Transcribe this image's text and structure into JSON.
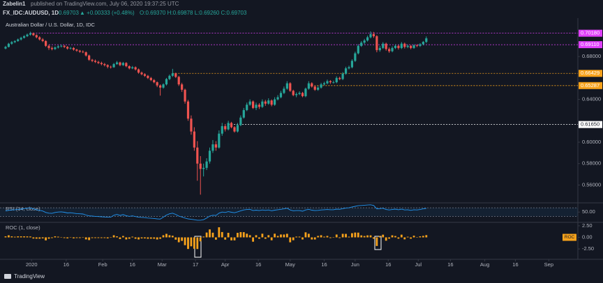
{
  "header": {
    "author": "Zabelin1",
    "published": "published on TradingView.com, July 06, 2020 19:37:25 UTC",
    "symbol": "FX_IDC:AUDUSD, 1D",
    "price": "0.69703",
    "change": "▲ +0.00333 (+0.48%)",
    "ohlc": "O:0.69370 H:0.69878 L:0.69260 C:0.69703"
  },
  "footer": "TradingView",
  "chart_data": {
    "type": "candlestick",
    "title": "Australian Dollar / U.S. Dollar, 1D, IDC",
    "up_color": "#26a69a",
    "down_color": "#ef5350",
    "ohlc": [
      [
        0.6875,
        0.69,
        0.6868,
        0.689
      ],
      [
        0.689,
        0.6928,
        0.6885,
        0.692
      ],
      [
        0.692,
        0.6945,
        0.691,
        0.6935
      ],
      [
        0.6935,
        0.6952,
        0.6925,
        0.6945
      ],
      [
        0.6945,
        0.6968,
        0.6938,
        0.696
      ],
      [
        0.696,
        0.6985,
        0.695,
        0.6975
      ],
      [
        0.6975,
        0.7,
        0.6968,
        0.699
      ],
      [
        0.699,
        0.7015,
        0.6982,
        0.7005
      ],
      [
        0.7005,
        0.7032,
        0.6995,
        0.7018
      ],
      [
        0.7018,
        0.7025,
        0.6992,
        0.7
      ],
      [
        0.7,
        0.7008,
        0.697,
        0.698
      ],
      [
        0.698,
        0.699,
        0.695,
        0.696
      ],
      [
        0.696,
        0.6972,
        0.6935,
        0.6945
      ],
      [
        0.6945,
        0.6952,
        0.689,
        0.69
      ],
      [
        0.69,
        0.6912,
        0.6862,
        0.688
      ],
      [
        0.688,
        0.6895,
        0.6858,
        0.687
      ],
      [
        0.687,
        0.6895,
        0.6862,
        0.6885
      ],
      [
        0.6885,
        0.6905,
        0.6875,
        0.6895
      ],
      [
        0.6895,
        0.6912,
        0.6885,
        0.69
      ],
      [
        0.69,
        0.6908,
        0.688,
        0.689
      ],
      [
        0.689,
        0.6898,
        0.6865,
        0.6875
      ],
      [
        0.6875,
        0.689,
        0.6866,
        0.688
      ],
      [
        0.688,
        0.6888,
        0.6855,
        0.6865
      ],
      [
        0.6865,
        0.6872,
        0.6845,
        0.6855
      ],
      [
        0.6855,
        0.6862,
        0.6835,
        0.6845
      ],
      [
        0.6845,
        0.6858,
        0.6832,
        0.684
      ],
      [
        0.684,
        0.6848,
        0.68,
        0.681
      ],
      [
        0.681,
        0.6818,
        0.676,
        0.677
      ],
      [
        0.677,
        0.6778,
        0.6748,
        0.676
      ],
      [
        0.676,
        0.6772,
        0.674,
        0.675
      ],
      [
        0.675,
        0.676,
        0.673,
        0.674
      ],
      [
        0.674,
        0.6752,
        0.6718,
        0.673
      ],
      [
        0.673,
        0.674,
        0.6708,
        0.672
      ],
      [
        0.672,
        0.6728,
        0.669,
        0.6705
      ],
      [
        0.6705,
        0.6715,
        0.6688,
        0.67
      ],
      [
        0.67,
        0.674,
        0.6695,
        0.673
      ],
      [
        0.673,
        0.6758,
        0.6722,
        0.6745
      ],
      [
        0.6745,
        0.6752,
        0.671,
        0.672
      ],
      [
        0.672,
        0.675,
        0.6712,
        0.674
      ],
      [
        0.674,
        0.6748,
        0.67,
        0.671
      ],
      [
        0.671,
        0.6718,
        0.668,
        0.669
      ],
      [
        0.669,
        0.6712,
        0.6682,
        0.67
      ],
      [
        0.67,
        0.6708,
        0.667,
        0.668
      ],
      [
        0.668,
        0.6688,
        0.664,
        0.665
      ],
      [
        0.665,
        0.666,
        0.6625,
        0.6635
      ],
      [
        0.6635,
        0.6645,
        0.661,
        0.662
      ],
      [
        0.662,
        0.6628,
        0.659,
        0.66
      ],
      [
        0.66,
        0.661,
        0.657,
        0.658
      ],
      [
        0.658,
        0.659,
        0.655,
        0.656
      ],
      [
        0.656,
        0.6568,
        0.6515,
        0.653
      ],
      [
        0.653,
        0.654,
        0.6435,
        0.651
      ],
      [
        0.651,
        0.655,
        0.65,
        0.654
      ],
      [
        0.654,
        0.66,
        0.653,
        0.659
      ],
      [
        0.659,
        0.6632,
        0.658,
        0.662
      ],
      [
        0.662,
        0.6685,
        0.661,
        0.6643
      ],
      [
        0.6643,
        0.665,
        0.66,
        0.661
      ],
      [
        0.661,
        0.662,
        0.6525,
        0.654
      ],
      [
        0.654,
        0.6555,
        0.647,
        0.649
      ],
      [
        0.649,
        0.65,
        0.636,
        0.638
      ],
      [
        0.638,
        0.6395,
        0.62,
        0.622
      ],
      [
        0.622,
        0.625,
        0.607,
        0.61
      ],
      [
        0.61,
        0.614,
        0.592,
        0.595
      ],
      [
        0.595,
        0.601,
        0.564,
        0.58
      ],
      [
        0.58,
        0.587,
        0.551,
        0.575
      ],
      [
        0.575,
        0.58,
        0.568,
        0.576
      ],
      [
        0.576,
        0.585,
        0.574,
        0.582
      ],
      [
        0.582,
        0.595,
        0.58,
        0.592
      ],
      [
        0.592,
        0.602,
        0.59,
        0.598
      ],
      [
        0.598,
        0.601,
        0.592,
        0.595
      ],
      [
        0.595,
        0.611,
        0.594,
        0.608
      ],
      [
        0.608,
        0.618,
        0.606,
        0.615
      ],
      [
        0.615,
        0.617,
        0.61,
        0.612
      ],
      [
        0.612,
        0.62,
        0.611,
        0.618
      ],
      [
        0.618,
        0.619,
        0.613,
        0.614
      ],
      [
        0.614,
        0.615,
        0.609,
        0.61
      ],
      [
        0.61,
        0.618,
        0.609,
        0.616
      ],
      [
        0.616,
        0.625,
        0.615,
        0.623
      ],
      [
        0.623,
        0.632,
        0.622,
        0.63
      ],
      [
        0.63,
        0.637,
        0.629,
        0.635
      ],
      [
        0.635,
        0.64,
        0.634,
        0.638
      ],
      [
        0.638,
        0.639,
        0.631,
        0.632
      ],
      [
        0.632,
        0.637,
        0.63,
        0.635
      ],
      [
        0.635,
        0.6365,
        0.631,
        0.633
      ],
      [
        0.633,
        0.64,
        0.632,
        0.638
      ],
      [
        0.638,
        0.6395,
        0.634,
        0.636
      ],
      [
        0.636,
        0.641,
        0.635,
        0.639
      ],
      [
        0.639,
        0.64,
        0.6335,
        0.635
      ],
      [
        0.635,
        0.642,
        0.634,
        0.64
      ],
      [
        0.64,
        0.644,
        0.639,
        0.642
      ],
      [
        0.642,
        0.648,
        0.641,
        0.646
      ],
      [
        0.646,
        0.652,
        0.645,
        0.65
      ],
      [
        0.65,
        0.657,
        0.649,
        0.655
      ],
      [
        0.655,
        0.656,
        0.647,
        0.648
      ],
      [
        0.648,
        0.649,
        0.643,
        0.644
      ],
      [
        0.644,
        0.6465,
        0.642,
        0.645
      ],
      [
        0.645,
        0.6475,
        0.644,
        0.646
      ],
      [
        0.646,
        0.647,
        0.642,
        0.643
      ],
      [
        0.643,
        0.651,
        0.642,
        0.65
      ],
      [
        0.65,
        0.657,
        0.649,
        0.655
      ],
      [
        0.655,
        0.656,
        0.651,
        0.652
      ],
      [
        0.652,
        0.653,
        0.648,
        0.649
      ],
      [
        0.649,
        0.6525,
        0.648,
        0.651
      ],
      [
        0.651,
        0.6555,
        0.65,
        0.654
      ],
      [
        0.654,
        0.6565,
        0.653,
        0.655
      ],
      [
        0.655,
        0.6585,
        0.654,
        0.657
      ],
      [
        0.657,
        0.658,
        0.6545,
        0.656
      ],
      [
        0.656,
        0.6575,
        0.6548,
        0.656
      ],
      [
        0.656,
        0.6615,
        0.655,
        0.66
      ],
      [
        0.66,
        0.6612,
        0.658,
        0.659
      ],
      [
        0.659,
        0.6655,
        0.658,
        0.664
      ],
      [
        0.664,
        0.6705,
        0.663,
        0.669
      ],
      [
        0.669,
        0.6715,
        0.668,
        0.67
      ],
      [
        0.67,
        0.6775,
        0.669,
        0.676
      ],
      [
        0.676,
        0.6845,
        0.675,
        0.683
      ],
      [
        0.683,
        0.6915,
        0.682,
        0.69
      ],
      [
        0.69,
        0.6945,
        0.689,
        0.693
      ],
      [
        0.693,
        0.6965,
        0.6915,
        0.695
      ],
      [
        0.695,
        0.6995,
        0.694,
        0.698
      ],
      [
        0.698,
        0.7035,
        0.697,
        0.701
      ],
      [
        0.701,
        0.703,
        0.6975,
        0.699
      ],
      [
        0.699,
        0.7,
        0.684,
        0.686
      ],
      [
        0.686,
        0.69,
        0.6845,
        0.688
      ],
      [
        0.688,
        0.6935,
        0.687,
        0.692
      ],
      [
        0.692,
        0.693,
        0.6855,
        0.687
      ],
      [
        0.687,
        0.6885,
        0.6835,
        0.685
      ],
      [
        0.685,
        0.6895,
        0.684,
        0.688
      ],
      [
        0.688,
        0.6915,
        0.687,
        0.69
      ],
      [
        0.69,
        0.691,
        0.6865,
        0.688
      ],
      [
        0.688,
        0.6935,
        0.687,
        0.692
      ],
      [
        0.692,
        0.693,
        0.6875,
        0.689
      ],
      [
        0.689,
        0.6912,
        0.6878,
        0.69
      ],
      [
        0.69,
        0.6908,
        0.6868,
        0.688
      ],
      [
        0.688,
        0.6915,
        0.6872,
        0.6905
      ],
      [
        0.6905,
        0.6915,
        0.6888,
        0.69
      ],
      [
        0.69,
        0.6925,
        0.689,
        0.6915
      ],
      [
        0.6915,
        0.6945,
        0.6905,
        0.6937
      ],
      [
        0.6937,
        0.69878,
        0.6926,
        0.69703
      ]
    ],
    "xlim": [
      -1.8,
      185
    ],
    "xticks": [
      {
        "value": 8.4,
        "label": "2020"
      },
      {
        "value": 19.6,
        "label": "16"
      },
      {
        "value": 31.4,
        "label": "Feb"
      },
      {
        "value": 41,
        "label": "16"
      },
      {
        "value": 50.6,
        "label": "Mar"
      },
      {
        "value": 61.4,
        "label": "17"
      },
      {
        "value": 71,
        "label": "Apr"
      },
      {
        "value": 81.7,
        "label": "16"
      },
      {
        "value": 92,
        "label": "May"
      },
      {
        "value": 103,
        "label": "16"
      },
      {
        "value": 113,
        "label": "Jun"
      },
      {
        "value": 123.7,
        "label": "16"
      },
      {
        "value": 133.4,
        "label": "Jul"
      },
      {
        "value": 143.8,
        "label": "16"
      },
      {
        "value": 154.9,
        "label": "Aug"
      },
      {
        "value": 164.8,
        "label": "16"
      },
      {
        "value": 175.6,
        "label": "Sep"
      }
    ],
    "ylim": [
      0.544,
      0.7146
    ],
    "yticks": [
      {
        "value": 0.56,
        "label": "0.56000"
      },
      {
        "value": 0.58,
        "label": "0.58000"
      },
      {
        "value": 0.6,
        "label": "0.60000"
      },
      {
        "value": 0.64,
        "label": "0.64000"
      },
      {
        "value": 0.68,
        "label": "0.68000"
      }
    ],
    "levels": [
      {
        "value": 0.7018,
        "label": "0.70180",
        "color": "#e040fb",
        "from": 8
      },
      {
        "value": 0.6911,
        "label": "0.69110",
        "color": "#e040fb",
        "from": 14
      },
      {
        "value": 0.66429,
        "label": "0.66429",
        "color": "#f7a21b",
        "from": 54
      },
      {
        "value": 0.65287,
        "label": "0.65287",
        "color": "#f7a21b",
        "from": 98
      },
      {
        "value": 0.6165,
        "label": "0.61650",
        "color": "#ffffff",
        "from": 72
      }
    ],
    "rsi": {
      "name": "RSI (14, close)",
      "color": "#2196f3",
      "ylim": [
        5,
        90
      ],
      "yticks": [
        {
          "value": 50,
          "label": "50.00"
        }
      ],
      "bands": [
        30,
        70
      ],
      "values": [
        55,
        58,
        60,
        61,
        63,
        64,
        66,
        68,
        70,
        65,
        61,
        58,
        55,
        48,
        45,
        44,
        48,
        50,
        51,
        49,
        46,
        47,
        45,
        43,
        42,
        41,
        36,
        32,
        31,
        30,
        29,
        28,
        27,
        26,
        26,
        35,
        39,
        34,
        38,
        33,
        30,
        32,
        29,
        26,
        25,
        24,
        22,
        21,
        20,
        18,
        17,
        26,
        36,
        42,
        45,
        39,
        31,
        27,
        22,
        18,
        16,
        14,
        12,
        12,
        14,
        22,
        31,
        35,
        34,
        45,
        50,
        48,
        52,
        49,
        47,
        51,
        56,
        60,
        62,
        63,
        57,
        59,
        57,
        60,
        58,
        60,
        56,
        59,
        61,
        63,
        65,
        68,
        60,
        56,
        57,
        57,
        54,
        60,
        63,
        59,
        57,
        58,
        60,
        61,
        62,
        61,
        61,
        64,
        63,
        66,
        69,
        70,
        74,
        77,
        80,
        81,
        82,
        83,
        84,
        81,
        65,
        66,
        68,
        62,
        60,
        62,
        64,
        61,
        64,
        60,
        61,
        58,
        61,
        60,
        62,
        65,
        67
      ]
    },
    "roc": {
      "name": "ROC (1, close)",
      "tag": "ROC",
      "color": "#f7a21b",
      "ylim": [
        -4.44,
        3.09
      ],
      "yticks": [
        {
          "value": 2.5,
          "label": "2.50"
        },
        {
          "value": 0,
          "label": "0.00"
        },
        {
          "value": -2.5,
          "label": "-2.50"
        }
      ],
      "values": [
        0.22,
        0.44,
        0.22,
        0.14,
        0.22,
        0.22,
        0.22,
        0.21,
        0.19,
        -0.26,
        -0.29,
        -0.29,
        -0.22,
        -0.65,
        -0.29,
        -0.15,
        0.22,
        0.15,
        0.07,
        -0.15,
        -0.22,
        0.07,
        -0.22,
        -0.15,
        -0.15,
        -0.07,
        -0.44,
        -0.59,
        -0.15,
        -0.15,
        -0.15,
        -0.15,
        -0.15,
        -0.22,
        -0.07,
        0.45,
        0.22,
        -0.37,
        0.3,
        -0.45,
        -0.3,
        0.15,
        -0.3,
        -0.45,
        -0.23,
        -0.23,
        -0.3,
        -0.3,
        -0.3,
        -0.46,
        -0.31,
        0.46,
        0.76,
        0.46,
        0.35,
        -0.5,
        -1.06,
        -0.76,
        -1.69,
        -2.51,
        -1.93,
        -2.46,
        -2.52,
        -0.86,
        0.17,
        1.04,
        1.72,
        1.01,
        -0.5,
        2.18,
        1.15,
        -0.49,
        0.98,
        -0.65,
        -0.65,
        0.98,
        1.14,
        1.12,
        0.79,
        0.47,
        -0.94,
        0.47,
        -0.31,
        0.79,
        -0.31,
        0.47,
        -0.63,
        0.79,
        0.31,
        0.62,
        0.62,
        0.77,
        -1.07,
        -0.62,
        0.16,
        0.16,
        -0.46,
        1.09,
        0.77,
        -0.46,
        -0.46,
        0.31,
        0.46,
        0.15,
        0.31,
        -0.15,
        0,
        0.61,
        -0.15,
        0.76,
        0.75,
        0.15,
        0.9,
        1.04,
        1.02,
        0.43,
        0.29,
        0.43,
        0.43,
        -0.29,
        -1.86,
        0.29,
        0.58,
        -0.72,
        -0.29,
        0.44,
        0.29,
        -0.29,
        0.58,
        -0.43,
        0.14,
        -0.29,
        0.36,
        -0.07,
        0.22,
        0.32,
        0.48
      ]
    }
  }
}
